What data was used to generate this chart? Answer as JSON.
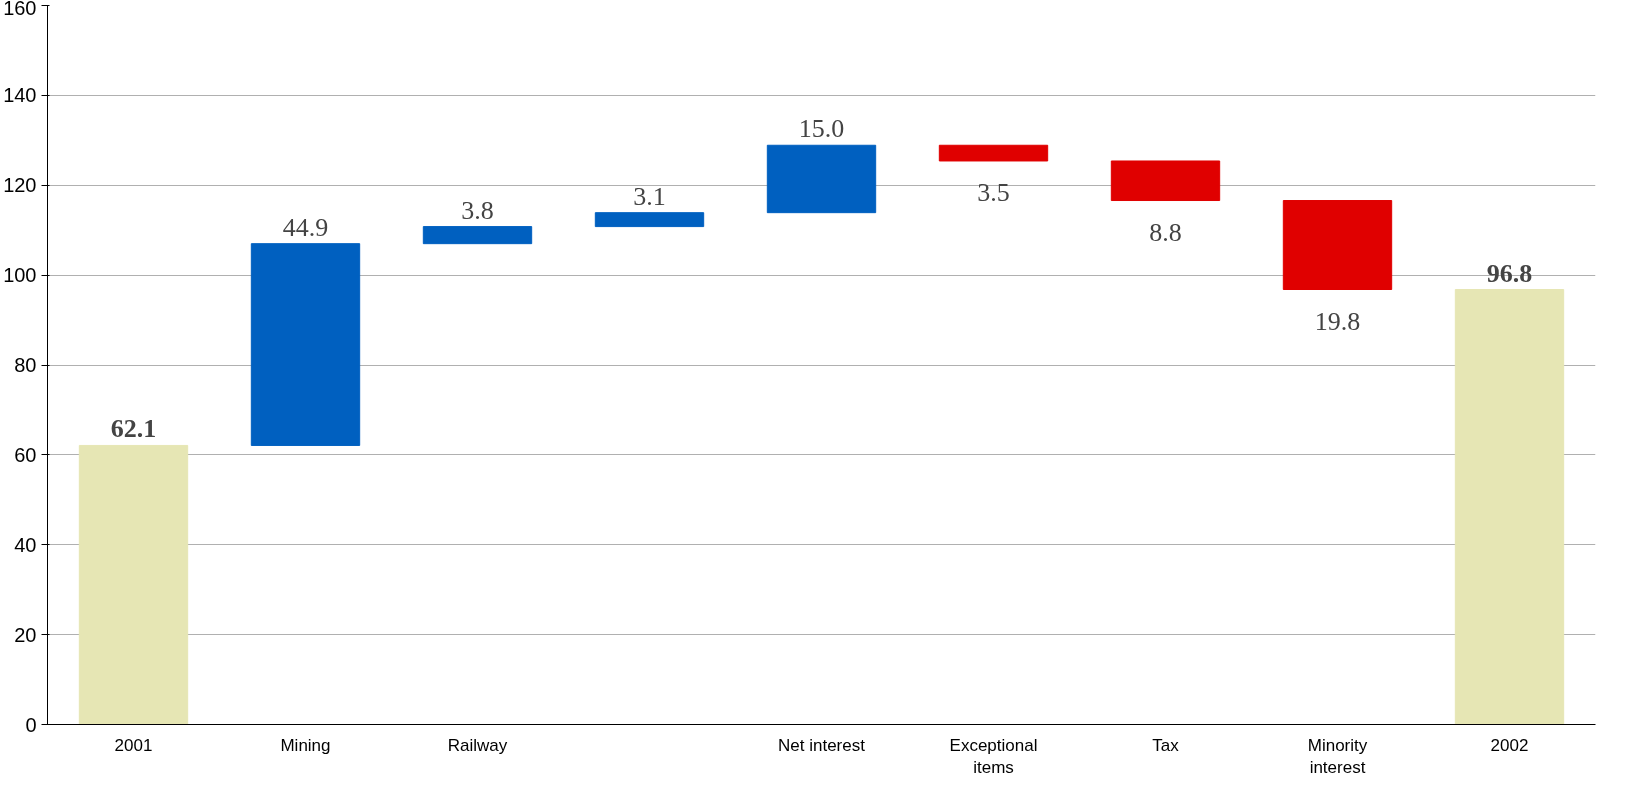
{
  "chart_data": {
    "type": "bar",
    "categories": [
      "2001",
      "Mining",
      "Railway",
      null,
      "Net interest",
      "Exceptional items",
      "Tax",
      "Minority interest",
      "2002"
    ],
    "values": [
      62.1,
      44.9,
      3.8,
      3.1,
      15.0,
      -3.5,
      -8.8,
      -19.8,
      96.8
    ],
    "base": [
      0,
      62.1,
      107.0,
      110.8,
      113.9,
      128.9,
      125.4,
      116.6,
      0
    ],
    "colors": [
      "#e6e6b4",
      "#0060c0",
      "#0060c0",
      "#0060c0",
      "#0060c0",
      "#e00000",
      "#e00000",
      "#e00000",
      "#e6e6b4"
    ],
    "value_labels": [
      "62.1",
      "44.9",
      "3.8",
      "3.1",
      "15.0",
      "3.5",
      "8.8",
      "19.8",
      "96.8"
    ],
    "ylim": [
      0,
      160
    ],
    "yticks": [
      0,
      20,
      40,
      60,
      80,
      100,
      120,
      140,
      160
    ],
    "grid": "y"
  }
}
